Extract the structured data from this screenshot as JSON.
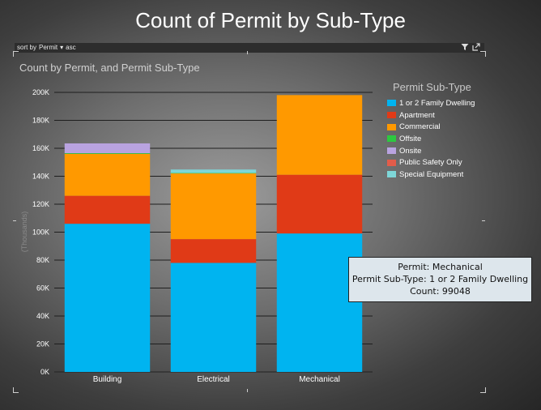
{
  "title": "Count of Permit by Sub-Type",
  "toolbar": {
    "sort_label": "sort by",
    "sort_field": "Permit",
    "sort_caret": "▾",
    "sort_order": "asc"
  },
  "colors": {
    "gridline": "#1e1e1e",
    "baseline": "#222222"
  },
  "tooltip": {
    "line1": "Permit: Mechanical",
    "line2": "Permit Sub-Type: 1 or 2 Family Dwelling",
    "line3": "Count: 99048"
  },
  "chart_data": {
    "type": "bar",
    "stacked": true,
    "title": "Count by Permit, and Permit Sub-Type",
    "xlabel": "",
    "ylabel": "(Thousands)",
    "ylim": [
      0,
      200000
    ],
    "yticks": [
      0,
      20000,
      40000,
      60000,
      80000,
      100000,
      120000,
      140000,
      160000,
      180000,
      200000
    ],
    "ytick_labels": [
      "0K",
      "20K",
      "40K",
      "60K",
      "80K",
      "100K",
      "120K",
      "140K",
      "160K",
      "180K",
      "200K"
    ],
    "grid": true,
    "legend_title": "Permit Sub-Type",
    "legend_position": "right",
    "categories": [
      "Building",
      "Electrical",
      "Mechanical"
    ],
    "series": [
      {
        "name": "1 or 2 Family Dwelling",
        "color": "#00b4f0",
        "values": [
          106000,
          78000,
          99048
        ]
      },
      {
        "name": "Apartment",
        "color": "#e03a17",
        "values": [
          20000,
          17000,
          42000
        ]
      },
      {
        "name": "Commercial",
        "color": "#ff9900",
        "values": [
          30000,
          47000,
          57000
        ]
      },
      {
        "name": "Offsite",
        "color": "#2dc840",
        "values": [
          500,
          300,
          0
        ]
      },
      {
        "name": "Onsite",
        "color": "#b9a3e0",
        "values": [
          7000,
          0,
          0
        ]
      },
      {
        "name": "Public Safety Only",
        "color": "#e25c4a",
        "values": [
          0,
          0,
          0
        ]
      },
      {
        "name": "Special Equipment",
        "color": "#7ed6d8",
        "values": [
          0,
          2500,
          0
        ]
      }
    ]
  }
}
